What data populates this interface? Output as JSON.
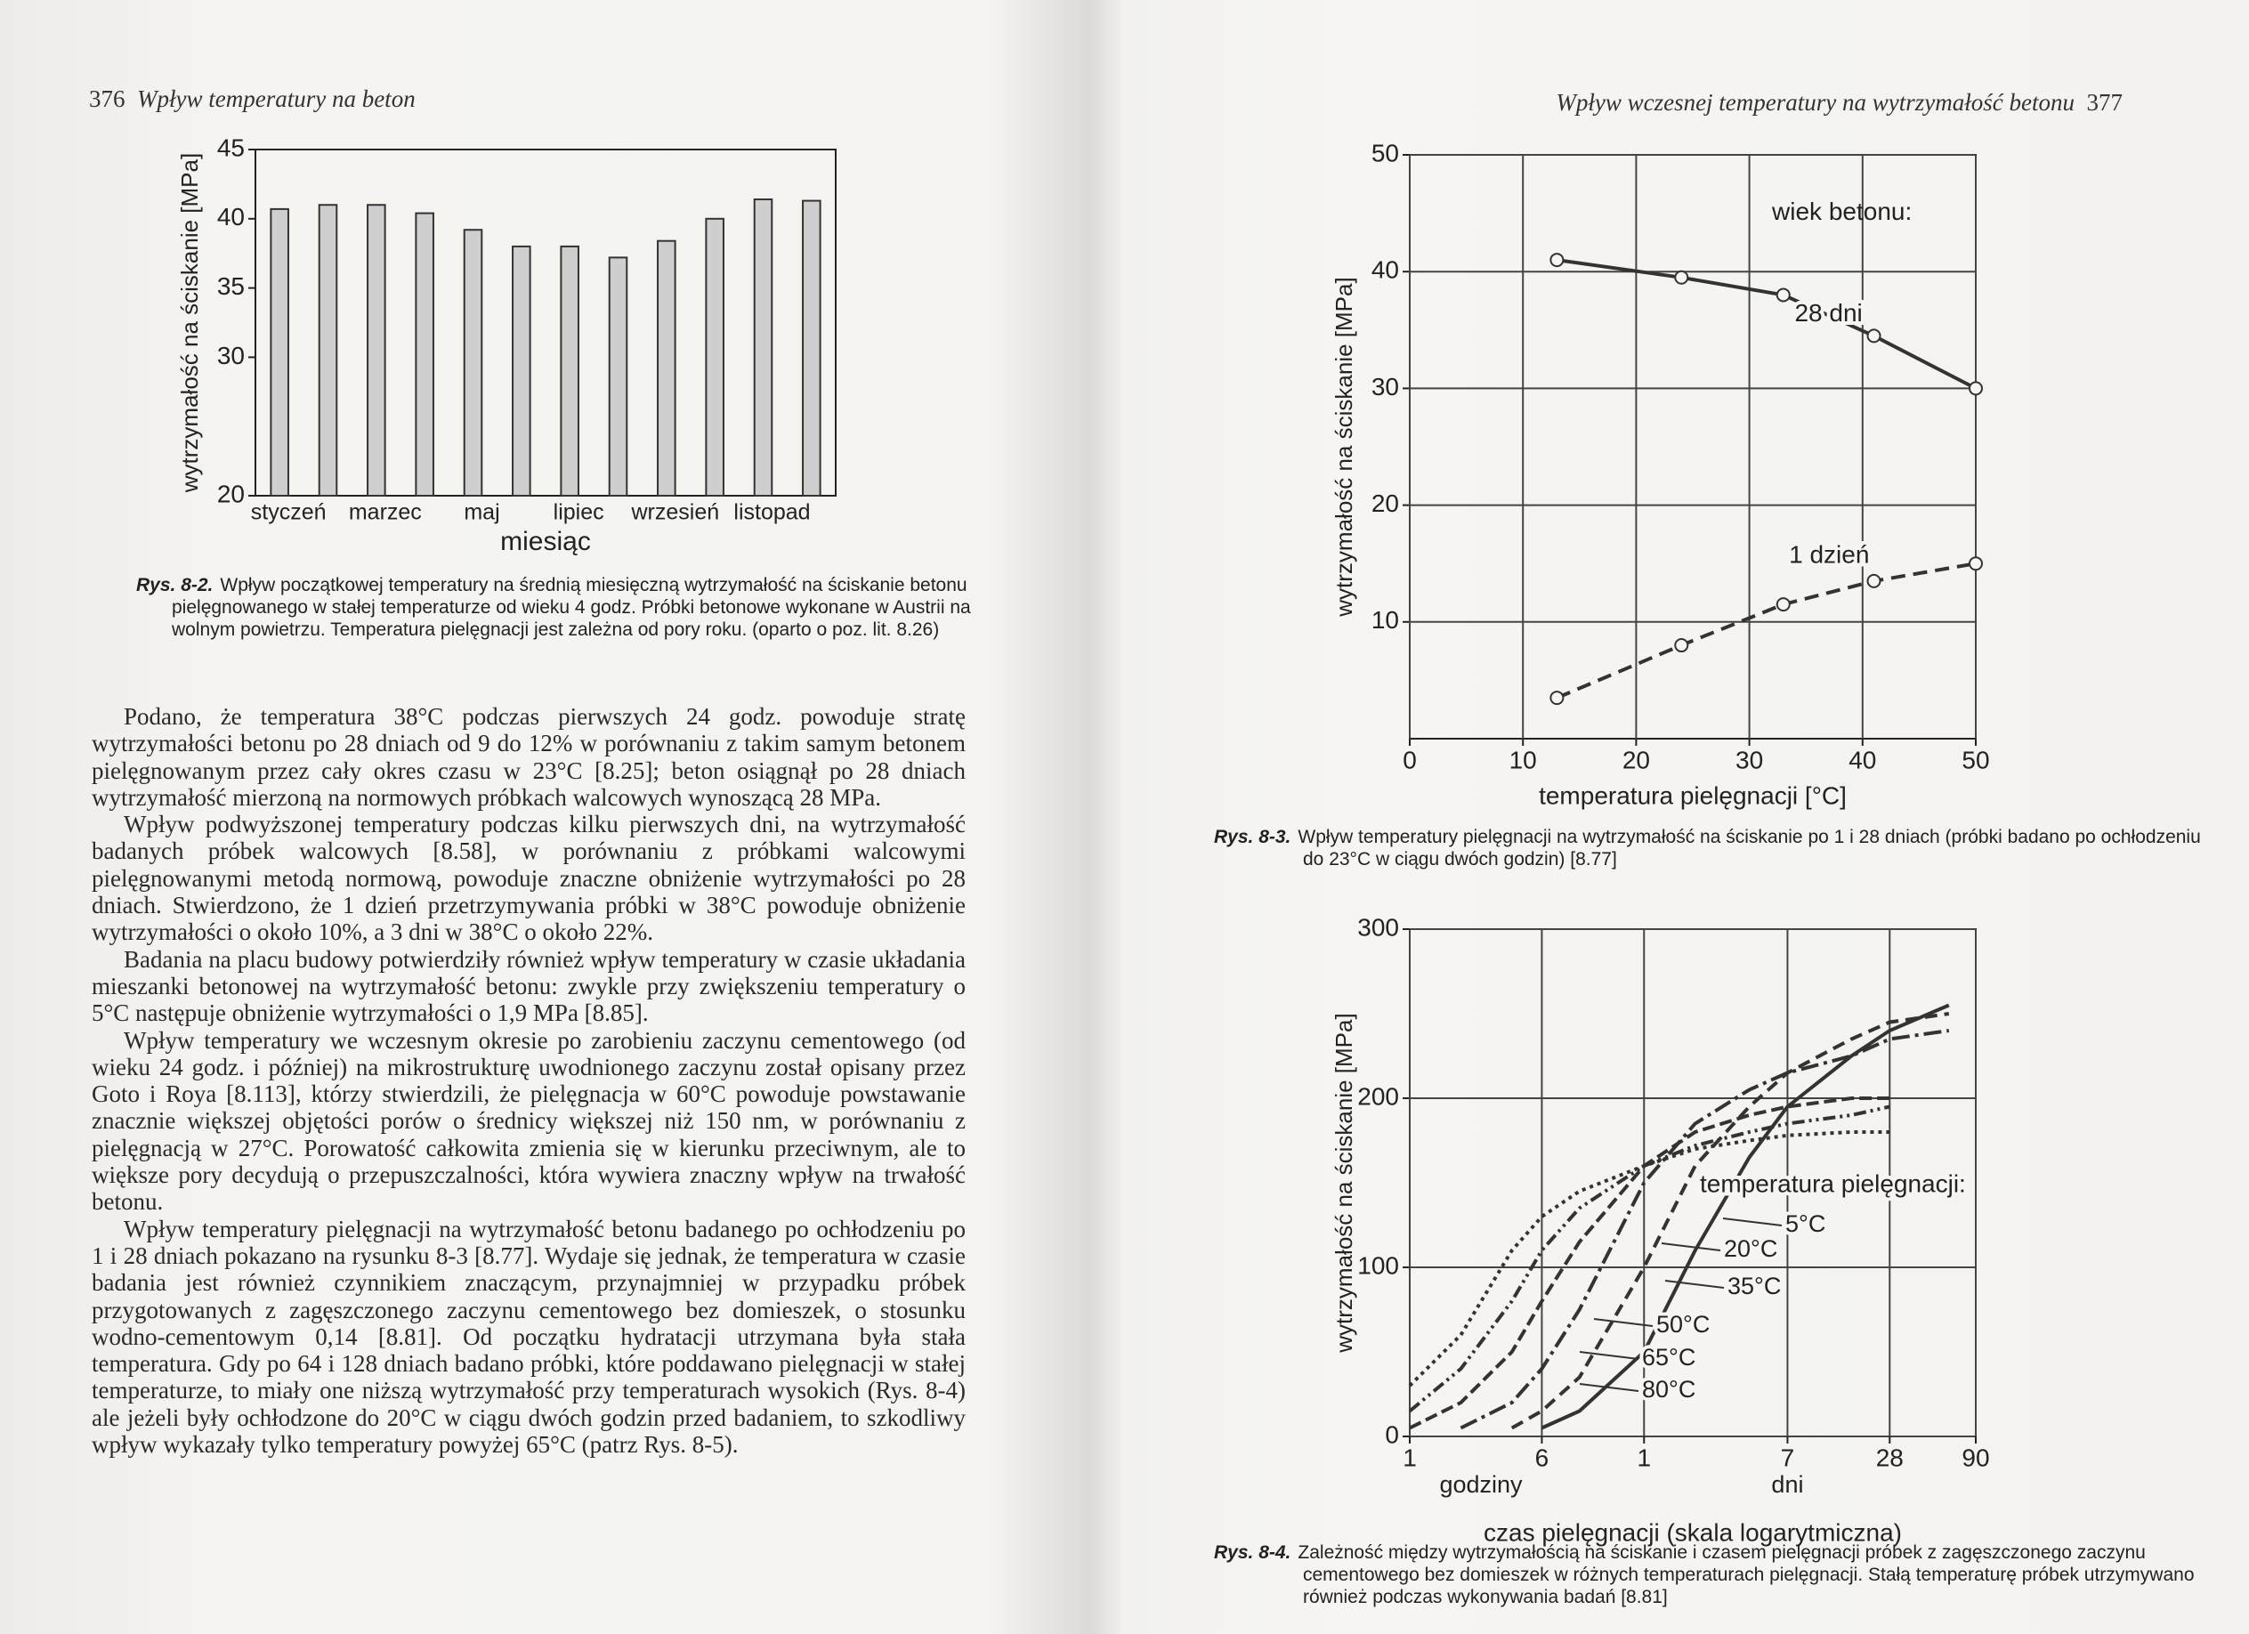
{
  "left_page": {
    "page_number": "376",
    "running_title": "Wpływ temperatury na beton",
    "caption_label": "Rys. 8-2.",
    "caption": "Wpływ początkowej temperatury na średnią miesięczną wytrzymałość na ściskanie betonu pielęgnowanego w stałej temperaturze od wieku 4 godz. Próbki betonowe wykonane w Austrii na wolnym powietrzu. Temperatura pielęgnacji jest zależna od pory roku. (oparto o poz. lit. 8.26)",
    "paragraphs": [
      "Podano, że temperatura 38°C podczas pierwszych 24 godz. powoduje stratę wytrzymałości betonu po 28 dniach od 9 do 12% w porównaniu z takim samym betonem pielęgnowanym przez cały okres czasu w 23°C [8.25]; beton osiągnął po 28 dniach wytrzymałość mierzoną na normowych próbkach walcowych wynoszącą 28 MPa.",
      "Wpływ podwyższonej temperatury podczas kilku pierwszych dni, na wytrzymałość badanych próbek walcowych [8.58], w porównaniu z próbkami walcowymi pielęgnowanymi metodą normową, powoduje znaczne obniżenie wytrzymałości po 28 dniach. Stwierdzono, że 1 dzień przetrzymywania próbki w 38°C powoduje obniżenie wytrzymałości o około 10%, a 3 dni w 38°C o około 22%.",
      "Badania na placu budowy potwierdziły również wpływ temperatury w czasie układania mieszanki betonowej na wytrzymałość betonu: zwykle przy zwiększeniu temperatury o 5°C następuje obniżenie wytrzymałości o 1,9 MPa [8.85].",
      "Wpływ temperatury we wczesnym okresie po zarobieniu zaczynu cementowego (od wieku 24 godz. i później) na mikrostrukturę uwodnionego zaczynu został opisany przez Goto i Roya [8.113], którzy stwierdzili, że pielęgnacja w 60°C powoduje powstawanie znacznie większej objętości porów o średnicy większej niż 150 nm, w porównaniu z pielęgnacją w 27°C. Porowatość całkowita zmienia się w kierunku przeciwnym, ale to większe pory decydują o przepuszczalności, która wywiera znaczny wpływ na trwałość betonu.",
      "Wpływ temperatury pielęgnacji na wytrzymałość betonu badanego po ochłodzeniu po 1 i 28 dniach pokazano na rysunku 8-3 [8.77]. Wydaje się jednak, że temperatura w czasie badania jest również czynnikiem znaczącym, przynajmniej w przypadku próbek przygotowanych z zagęszczonego zaczynu cementowego bez domieszek, o stosunku wodno-cementowym 0,14 [8.81]. Od początku hydratacji utrzymana była stała temperatura. Gdy po 64 i 128 dniach badano próbki, które poddawano pielęgnacji w stałej temperaturze, to miały one niższą wytrzymałość przy temperaturach wysokich (Rys. 8-4) ale jeżeli były ochłodzone do 20°C w ciągu dwóch godzin przed badaniem, to szkodliwy wpływ wykazały tylko temperatury powyżej 65°C (patrz Rys. 8-5)."
    ]
  },
  "right_page": {
    "page_number": "377",
    "running_title": "Wpływ wczesnej temperatury na wytrzymałość betonu",
    "caption_8_3_label": "Rys. 8-3.",
    "caption_8_3": "Wpływ temperatury pielęgnacji na wytrzymałość na ściskanie po 1 i 28 dniach (próbki badano po ochłodzeniu do 23°C w ciągu dwóch godzin) [8.77]",
    "caption_8_4_label": "Rys. 8-4.",
    "caption_8_4": "Zależność między wytrzymałością na ściskanie i czasem pielęgnacji próbek z zagęszczonego zaczynu cementowego bez domieszek w różnych temperaturach pielęgnacji. Stałą temperaturę próbek utrzymywano również podczas wykonywania badań [8.81]"
  },
  "chart_data": [
    {
      "type": "bar",
      "y_label": "wytrzymałość na ściskanie [MPa]",
      "x_label": "miesiąc",
      "categories": [
        "styczeń",
        null,
        "marzec",
        null,
        "maj",
        null,
        "lipiec",
        null,
        "wrzesień",
        null,
        "listopad",
        null
      ],
      "values": [
        40.7,
        41.0,
        41.0,
        40.4,
        39.2,
        38.0,
        38.0,
        37.2,
        38.4,
        40.0,
        41.4,
        41.3
      ],
      "color": "#cfcfcf",
      "ylim": [
        20,
        45
      ],
      "yticks": [
        20,
        30,
        35,
        40,
        45
      ],
      "grid": false
    },
    {
      "type": "line",
      "y_label": "wytrzymałość na ściskanie [MPa]",
      "x_label": "temperatura pielęgnacji [°C]",
      "annotation": "wiek betonu:",
      "series": [
        {
          "name": "28 dni",
          "color": "#333333",
          "dash": "solid",
          "x": [
            13,
            24,
            33,
            41,
            50
          ],
          "values": [
            41,
            39.5,
            38,
            34.5,
            30
          ]
        },
        {
          "name": "1 dzień",
          "color": "#333333",
          "dash": "16,9",
          "x": [
            13,
            24,
            33,
            41,
            50
          ],
          "values": [
            3.5,
            8,
            11.5,
            13.5,
            15
          ]
        }
      ],
      "xlim": [
        0,
        50
      ],
      "xticks": [
        0,
        10,
        20,
        30,
        40,
        50
      ],
      "ylim": [
        0,
        50
      ],
      "yticks": [
        10,
        20,
        30,
        40,
        50
      ],
      "grid": true
    },
    {
      "type": "line",
      "y_label": "wytrzymałość na ściskanie [MPa]",
      "x_label": "czas pielęgnacji (skala logarytmiczna)",
      "x_sublabels": [
        "godziny",
        "dni"
      ],
      "legend_title": "temperatura pielęgnacji:",
      "xscale": "log",
      "x": [
        1,
        2,
        4,
        6,
        10,
        24,
        48,
        100,
        168,
        400,
        672,
        1500
      ],
      "series": [
        {
          "name": "5°C",
          "color": "#333333",
          "dash": "solid",
          "values": [
            null,
            null,
            null,
            5,
            15,
            50,
            110,
            165,
            195,
            225,
            240,
            255
          ]
        },
        {
          "name": "20°C",
          "color": "#333333",
          "dash": "14,8",
          "values": [
            null,
            null,
            5,
            15,
            35,
            100,
            160,
            195,
            215,
            235,
            245,
            250
          ]
        },
        {
          "name": "35°C",
          "color": "#333333",
          "dash": "20,6,4,6",
          "values": [
            null,
            5,
            20,
            40,
            75,
            150,
            185,
            205,
            215,
            225,
            235,
            240
          ]
        },
        {
          "name": "50°C",
          "color": "#333333",
          "dash": "14,6",
          "values": [
            5,
            20,
            50,
            80,
            115,
            160,
            180,
            190,
            195,
            200,
            200,
            null
          ]
        },
        {
          "name": "65°C",
          "color": "#333333",
          "dash": "14,5,3,5,3,5",
          "values": [
            15,
            40,
            80,
            110,
            135,
            160,
            172,
            180,
            185,
            190,
            195,
            null
          ]
        },
        {
          "name": "80°C",
          "color": "#333333",
          "dash": "4,5",
          "values": [
            30,
            60,
            110,
            130,
            145,
            160,
            170,
            175,
            178,
            180,
            180,
            null
          ]
        }
      ],
      "xlim": [
        1,
        2160
      ],
      "xticks": [
        {
          "value": 1,
          "label": "1"
        },
        {
          "value": 6,
          "label": "6"
        },
        {
          "value": 24,
          "label": "1"
        },
        {
          "value": 168,
          "label": "7"
        },
        {
          "value": 672,
          "label": "28"
        },
        {
          "value": 2160,
          "label": "90"
        }
      ],
      "ylim": [
        0,
        300
      ],
      "yticks": [
        0,
        100,
        200,
        300
      ],
      "grid": true
    }
  ]
}
